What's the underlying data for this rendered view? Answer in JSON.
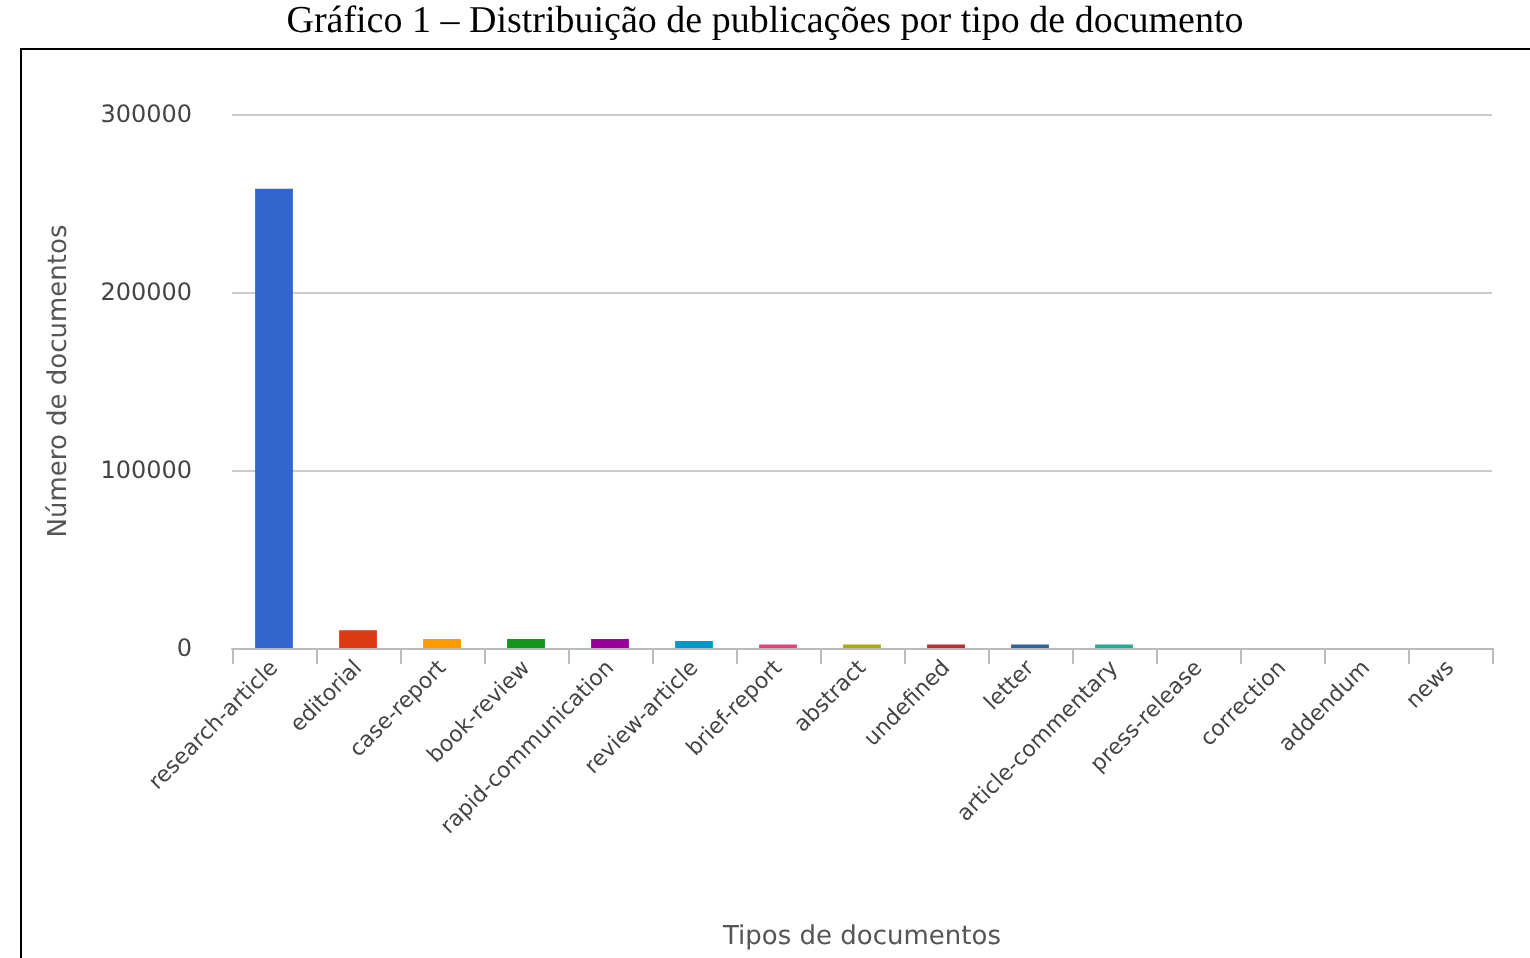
{
  "chart_data": {
    "type": "bar",
    "title": "Gráfico 1 – Distribuição de publicações por tipo de documento",
    "xlabel": "Tipos de documentos",
    "ylabel": "Número de documentos",
    "categories": [
      "research-article",
      "editorial",
      "case-report",
      "book-review",
      "rapid-communication",
      "review-article",
      "brief-report",
      "abstract",
      "undefined",
      "letter",
      "article-commentary",
      "press-release",
      "correction",
      "addendum",
      "news"
    ],
    "values": [
      258000,
      10000,
      5000,
      5000,
      5000,
      4000,
      2000,
      2000,
      2000,
      2000,
      2000,
      0,
      0,
      0,
      0
    ],
    "colors": [
      "#3366cc",
      "#dc3912",
      "#ff9900",
      "#109618",
      "#990099",
      "#0099c6",
      "#dd4477",
      "#aaaa11",
      "#b82e2e",
      "#316395",
      "#22aa99",
      "#994499",
      "#6633cc",
      "#e67300",
      "#8b0707"
    ],
    "ylim": [
      0,
      300000
    ],
    "yticks": [
      0,
      100000,
      200000,
      300000
    ],
    "grid": "y"
  }
}
